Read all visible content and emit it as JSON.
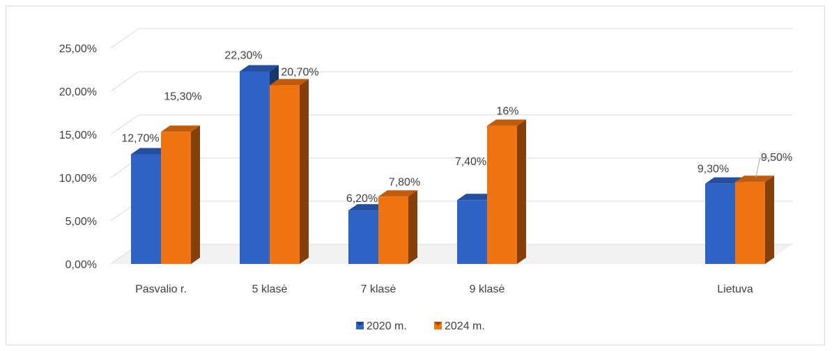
{
  "chart_data": {
    "type": "bar",
    "style": "3d-clustered-column",
    "categories": [
      "Pasvalio r.",
      "5 klasė",
      "7 klasė",
      "9 klasė",
      "",
      "Lietuva"
    ],
    "series": [
      {
        "name": "2020 m.",
        "color": "#2e63c4",
        "values": [
          12.7,
          22.3,
          6.2,
          7.4,
          null,
          9.3
        ],
        "labels": [
          "12,70%",
          "22,30%",
          "6,20%",
          "7,40%",
          "",
          "9,30%"
        ]
      },
      {
        "name": "2024 m.",
        "color": "#f07312",
        "values": [
          15.3,
          20.7,
          7.8,
          16.0,
          null,
          9.5
        ],
        "labels": [
          "15,30%",
          "20,70%",
          "7,80%",
          "16%",
          "",
          "9,50%"
        ]
      }
    ],
    "y_ticks": [
      "0,00%",
      "5,00%",
      "10,00%",
      "15,00%",
      "20,00%",
      "25,00%"
    ],
    "ylim": [
      0,
      25
    ],
    "grid": true,
    "legend_position": "bottom"
  }
}
